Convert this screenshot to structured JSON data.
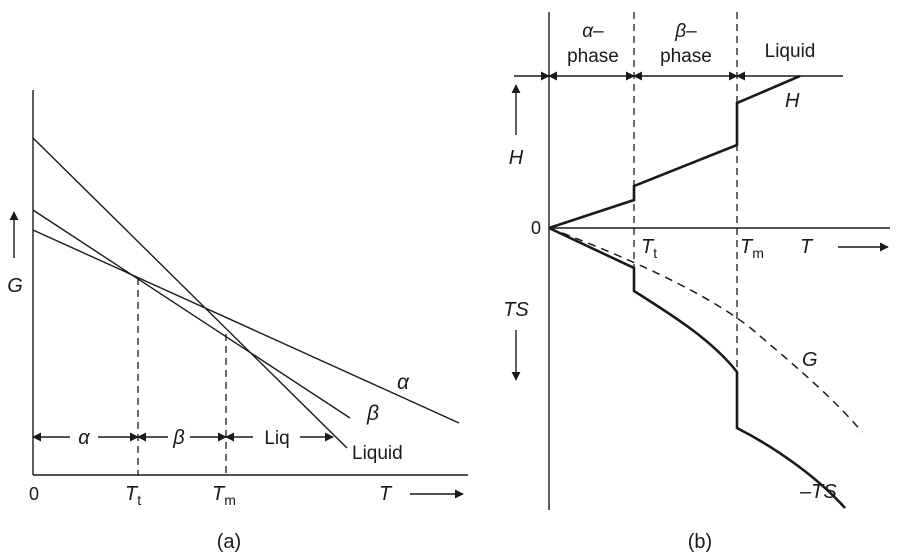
{
  "panel_a": {
    "caption": "(a)",
    "y_axis_label": "G",
    "x_axis_label": "T",
    "origin_label": "0",
    "tick_t": {
      "main": "T",
      "sub": "t"
    },
    "tick_m": {
      "main": "T",
      "sub": "m"
    },
    "curve_labels": {
      "alpha": "α",
      "beta": "β",
      "liquid": "Liquid"
    },
    "region_labels": {
      "alpha": "α",
      "beta": "β",
      "liquid": "Liq"
    }
  },
  "panel_b": {
    "caption": "(b)",
    "y_upper_label": "H",
    "y_lower_label": "TS",
    "x_axis_label": "T",
    "origin_label": "0",
    "tick_t": {
      "main": "T",
      "sub": "t"
    },
    "tick_m": {
      "main": "T",
      "sub": "m"
    },
    "phase_alpha": {
      "greek": "α",
      "dash": "–",
      "word": "phase"
    },
    "phase_beta": {
      "greek": "β",
      "dash": "–",
      "word": "phase"
    },
    "phase_liquid": "Liquid",
    "curve_labels": {
      "h": "H",
      "g": "G",
      "neg_ts": "–TS"
    }
  }
}
